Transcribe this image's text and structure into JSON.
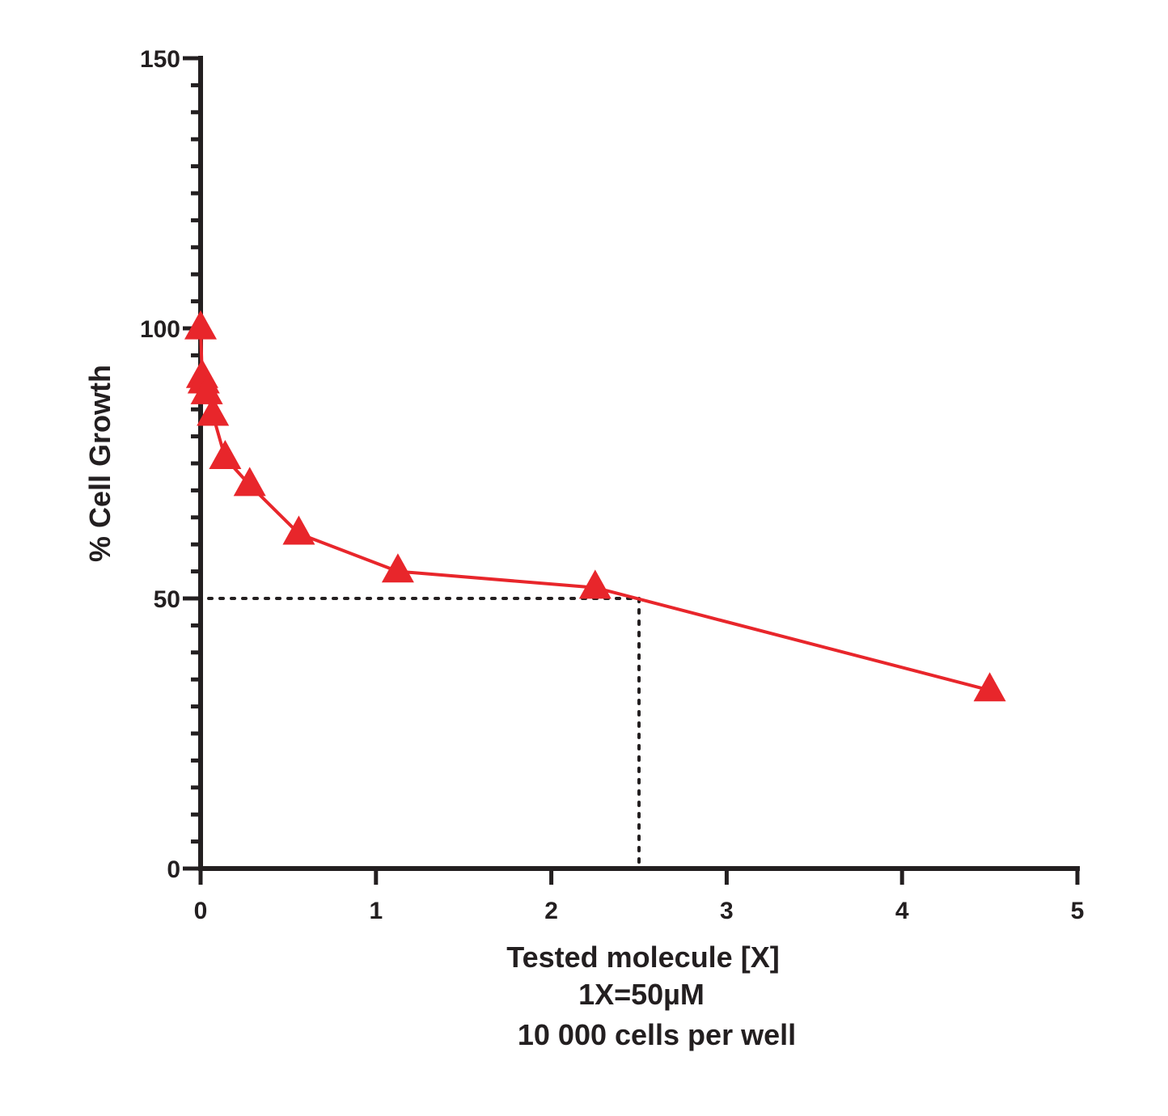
{
  "chart_data": {
    "type": "line",
    "title": "",
    "xlabel_lines": [
      "Tested molecule [X]",
      "1X=50µM",
      "10 000 cells per well"
    ],
    "ylabel": "% Cell Growth",
    "xlim": [
      0,
      5
    ],
    "ylim": [
      0,
      150
    ],
    "x_ticks": [
      0,
      1,
      2,
      3,
      4,
      5
    ],
    "x_tick_labels": [
      "0",
      "1",
      "2",
      "3",
      "4",
      "5"
    ],
    "y_ticks": [
      0,
      50,
      100,
      150
    ],
    "y_tick_labels": [
      "0",
      "50",
      "100",
      "150"
    ],
    "y_minor_step": 5,
    "grid": false,
    "series": [
      {
        "name": "Tested molecule",
        "color": "#e8262b",
        "marker": "triangle",
        "x": [
          0,
          0.0088,
          0.0176,
          0.035,
          0.07,
          0.14,
          0.28,
          0.56,
          1.125,
          2.25,
          4.5
        ],
        "y": [
          100,
          91,
          90,
          88,
          84,
          76,
          71,
          62,
          55,
          52,
          33
        ]
      }
    ],
    "reference_lines": {
      "color": "#231f20",
      "style": "dotted",
      "y_value": 50,
      "x_value": 2.5
    }
  }
}
